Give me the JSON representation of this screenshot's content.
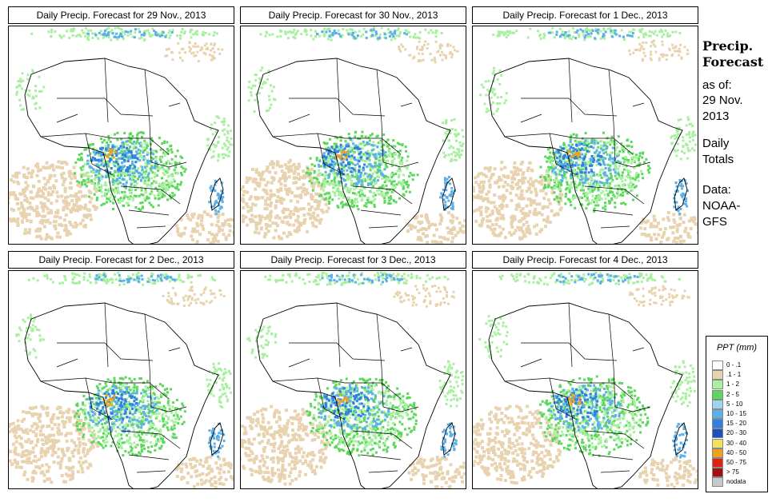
{
  "header": {
    "title": "Precip.\nForecast",
    "as_of_label": "as of:",
    "as_of_date": "29 Nov.\n2013",
    "period": "Daily\nTotals",
    "data_label": "Data:\nNOAA-\nGFS"
  },
  "panels": [
    {
      "title": "Daily Precip. Forecast for  29 Nov., 2013"
    },
    {
      "title": "Daily Precip. Forecast for  30 Nov., 2013"
    },
    {
      "title": "Daily Precip. Forecast for  1 Dec., 2013"
    },
    {
      "title": "Daily Precip. Forecast for  2 Dec., 2013"
    },
    {
      "title": "Daily Precip. Forecast for  3 Dec., 2013"
    },
    {
      "title": "Daily Precip. Forecast for  4 Dec., 2013"
    }
  ],
  "legend": {
    "title": "PPT (mm)",
    "items": [
      {
        "label": "0 - .1",
        "color": "#ffffff"
      },
      {
        "label": ".1 - 1",
        "color": "#e8d3b0"
      },
      {
        "label": "1 - 2",
        "color": "#a8f0a0"
      },
      {
        "label": "2 - 5",
        "color": "#5ad85a"
      },
      {
        "label": "5 - 10",
        "color": "#9ed4f0"
      },
      {
        "label": "10 - 15",
        "color": "#5ab0e8"
      },
      {
        "label": "15 - 20",
        "color": "#2f80e0"
      },
      {
        "label": "20 - 30",
        "color": "#1c50c0"
      },
      {
        "label": "30 - 40",
        "color": "#f4e060"
      },
      {
        "label": "40 - 50",
        "color": "#f0a020"
      },
      {
        "label": "50 - 75",
        "color": "#e02010"
      },
      {
        "label": "> 75",
        "color": "#a01010"
      },
      {
        "label": "nodata",
        "color": "#c8c8c8"
      }
    ]
  }
}
